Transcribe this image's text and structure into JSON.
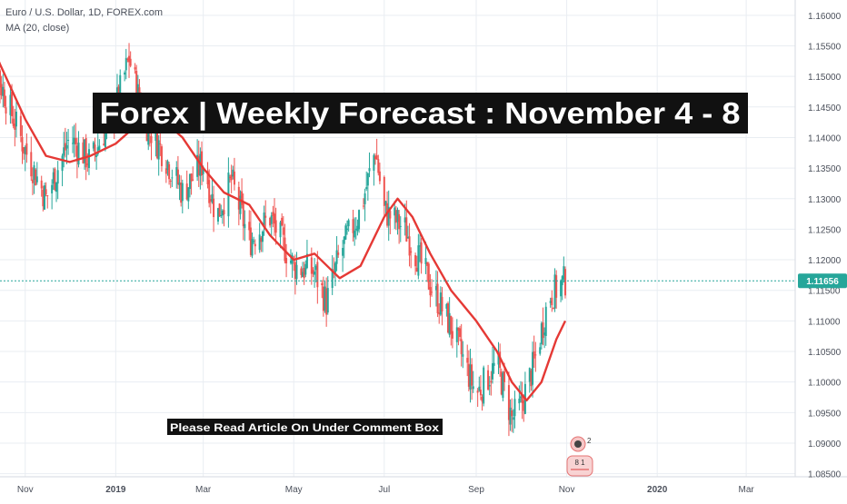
{
  "header": {
    "symbol_line": "Euro / U.S. Dollar, 1D, FOREX.com",
    "indicator_line": "MA (20, close)"
  },
  "banner": {
    "text": "Forex | Weekly Forecast : November 4 - 8"
  },
  "note": {
    "text": "Please Read Article On Under Comment Box"
  },
  "markers": {
    "earnings_label": "2",
    "event_label": "8 1"
  },
  "colors": {
    "up": "#26a69a",
    "down": "#ef5350",
    "ma": "#e53935",
    "grid": "#e9edf2",
    "axis_text": "#4a4f5a",
    "price_tag": "#26a69a",
    "banner_bg": "#111111",
    "banner_text": "#ffffff"
  },
  "chart_data": {
    "type": "line",
    "title": "Euro / U.S. Dollar, 1D, FOREX.com",
    "xlabel": "",
    "ylabel": "",
    "x_ticks": [
      "Nov",
      "2019",
      "Mar",
      "May",
      "Jul",
      "Sep",
      "Nov",
      "2020",
      "Mar"
    ],
    "y_ticks": [
      "1.16000",
      "1.15500",
      "1.15000",
      "1.14500",
      "1.14000",
      "1.13500",
      "1.13000",
      "1.12500",
      "1.12000",
      "1.11500",
      "1.11000",
      "1.10500",
      "1.10000",
      "1.09500",
      "1.09000",
      "1.08500"
    ],
    "ylim": [
      1.0845,
      1.1625
    ],
    "last_price": "1.11656",
    "grid": true,
    "series": [
      {
        "name": "Euro / U.S. Dollar",
        "x": [
          "2018-10-01",
          "2018-10-15",
          "2018-11-01",
          "2018-11-15",
          "2018-12-01",
          "2018-12-15",
          "2019-01-01",
          "2019-01-10",
          "2019-01-20",
          "2019-02-01",
          "2019-02-15",
          "2019-03-01",
          "2019-03-10",
          "2019-03-20",
          "2019-04-01",
          "2019-04-15",
          "2019-05-01",
          "2019-05-15",
          "2019-05-23",
          "2019-06-01",
          "2019-06-15",
          "2019-06-25",
          "2019-07-01",
          "2019-07-15",
          "2019-08-01",
          "2019-08-15",
          "2019-09-01",
          "2019-09-15",
          "2019-09-25",
          "2019-10-01",
          "2019-10-10",
          "2019-10-20",
          "2019-10-31"
        ],
        "values": [
          1.158,
          1.149,
          1.138,
          1.13,
          1.14,
          1.136,
          1.145,
          1.153,
          1.143,
          1.138,
          1.131,
          1.136,
          1.127,
          1.133,
          1.123,
          1.127,
          1.119,
          1.118,
          1.113,
          1.121,
          1.128,
          1.138,
          1.128,
          1.125,
          1.116,
          1.109,
          1.098,
          1.103,
          1.094,
          1.096,
          1.103,
          1.114,
          1.1166
        ]
      },
      {
        "name": "MA (20, close)",
        "x": [
          "2018-10-01",
          "2018-10-15",
          "2018-11-01",
          "2018-11-15",
          "2018-12-01",
          "2018-12-15",
          "2019-01-01",
          "2019-01-15",
          "2019-02-01",
          "2019-02-15",
          "2019-03-01",
          "2019-03-15",
          "2019-04-01",
          "2019-04-15",
          "2019-05-01",
          "2019-05-15",
          "2019-06-01",
          "2019-06-15",
          "2019-07-01",
          "2019-07-10",
          "2019-07-20",
          "2019-08-01",
          "2019-08-15",
          "2019-09-01",
          "2019-09-15",
          "2019-09-25",
          "2019-10-05",
          "2019-10-15",
          "2019-10-25",
          "2019-10-31"
        ],
        "values": [
          1.16,
          1.152,
          1.143,
          1.137,
          1.136,
          1.137,
          1.139,
          1.142,
          1.143,
          1.14,
          1.135,
          1.131,
          1.129,
          1.124,
          1.12,
          1.121,
          1.117,
          1.119,
          1.127,
          1.13,
          1.127,
          1.121,
          1.115,
          1.11,
          1.105,
          1.1,
          1.097,
          1.1,
          1.107,
          1.11
        ]
      }
    ]
  }
}
